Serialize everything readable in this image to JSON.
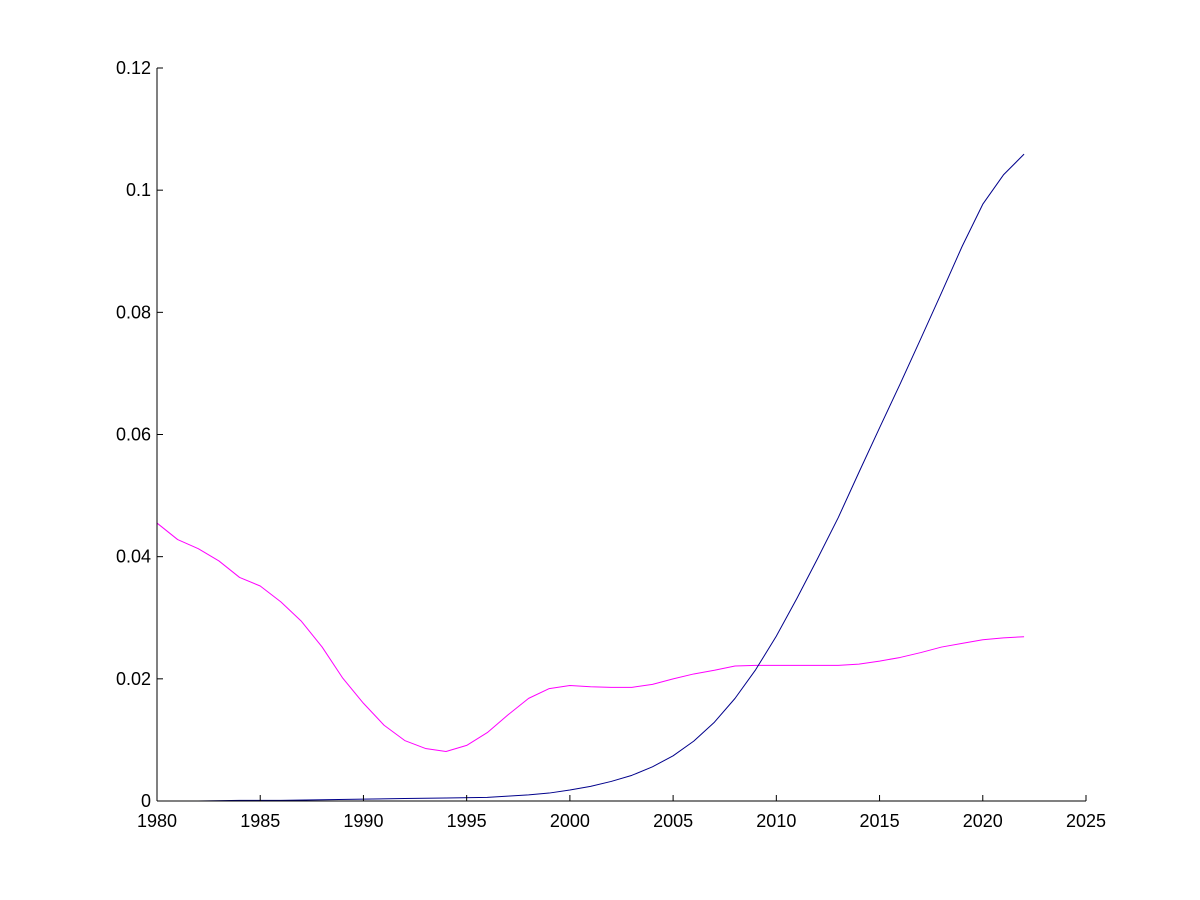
{
  "chart_data": {
    "type": "line",
    "title": "",
    "xlabel": "",
    "ylabel": "",
    "xlim": [
      1980,
      2025
    ],
    "ylim": [
      0,
      0.12
    ],
    "x_ticks": [
      1980,
      1985,
      1990,
      1995,
      2000,
      2005,
      2010,
      2015,
      2020,
      2025
    ],
    "y_ticks": [
      0,
      0.02,
      0.04,
      0.06,
      0.08,
      0.1,
      0.12
    ],
    "x_tick_labels": [
      "1980",
      "1985",
      "1990",
      "1995",
      "2000",
      "2005",
      "2010",
      "2015",
      "2020",
      "2025"
    ],
    "y_tick_labels": [
      "0",
      "0.02",
      "0.04",
      "0.06",
      "0.08",
      "0.1",
      "0.12"
    ],
    "grid": false,
    "series": [
      {
        "color": "#ff00ff",
        "x": [
          1980,
          1981,
          1982,
          1983,
          1984,
          1985,
          1986,
          1987,
          1988,
          1989,
          1990,
          1991,
          1992,
          1993,
          1994,
          1995,
          1996,
          1997,
          1998,
          1999,
          2000,
          2001,
          2002,
          2003,
          2004,
          2005,
          2006,
          2007,
          2008,
          2009,
          2010,
          2011,
          2012,
          2013,
          2014,
          2015,
          2016,
          2017,
          2018,
          2019,
          2020,
          2021,
          2022
        ],
        "values": [
          0.0455,
          0.0428,
          0.0413,
          0.0393,
          0.0366,
          0.0352,
          0.0326,
          0.0294,
          0.0252,
          0.0201,
          0.016,
          0.0124,
          0.0099,
          0.0086,
          0.0081,
          0.0091,
          0.0112,
          0.0141,
          0.0168,
          0.0184,
          0.0189,
          0.0187,
          0.0186,
          0.0186,
          0.0191,
          0.02,
          0.0208,
          0.0214,
          0.0221,
          0.0222,
          0.0222,
          0.0222,
          0.0222,
          0.0222,
          0.0224,
          0.0229,
          0.0235,
          0.0243,
          0.0252,
          0.0258,
          0.0264,
          0.0267,
          0.0269
        ]
      },
      {
        "color": "#00008b",
        "x": [
          1980,
          1982,
          1984,
          1986,
          1988,
          1990,
          1992,
          1994,
          1996,
          1997,
          1998,
          1999,
          2000,
          2001,
          2002,
          2003,
          2004,
          2005,
          2006,
          2007,
          2008,
          2009,
          2010,
          2011,
          2012,
          2013,
          2014,
          2015,
          2016,
          2017,
          2018,
          2019,
          2020,
          2021,
          2022
        ],
        "values": [
          0,
          0,
          0.0001,
          0.0001,
          0.0002,
          0.0003,
          0.0004,
          0.0005,
          0.0006,
          0.0008,
          0.001,
          0.0013,
          0.0018,
          0.0024,
          0.0032,
          0.0042,
          0.0056,
          0.0074,
          0.0098,
          0.0129,
          0.0168,
          0.0215,
          0.027,
          0.0332,
          0.0397,
          0.0464,
          0.0538,
          0.0611,
          0.0683,
          0.0757,
          0.0832,
          0.0908,
          0.0977,
          0.1025,
          0.1059
        ]
      }
    ]
  }
}
